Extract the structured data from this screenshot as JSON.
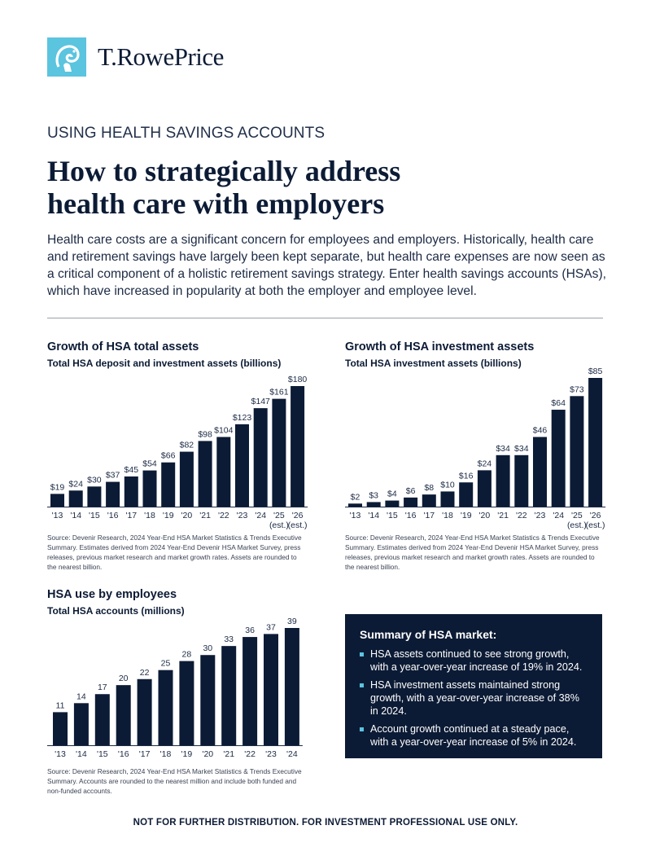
{
  "brand": {
    "name": "T.RowePrice",
    "accent_color": "#5bc4df",
    "primary_color": "#0c1b35",
    "icon": "ram-logo-icon"
  },
  "kicker": "USING HEALTH SAVINGS ACCOUNTS",
  "headline": {
    "line1": "How to strategically address",
    "line2": "health care with employers"
  },
  "intro": "Health care costs are a significant concern for employees and employers. Historically, health care and retirement savings have largely been kept separate, but health care expenses are now seen as a critical component of a holistic retirement savings strategy. Enter health savings accounts (HSAs), which have increased in popularity at both the employer and employee level.",
  "charts": {
    "assets": {
      "title": "Growth of HSA total assets",
      "subtitle": "Total HSA deposit and investment assets (billions)",
      "source": "Source: Devenir Research, 2024 Year-End HSA Market Statistics & Trends Executive Summary. Estimates derived from 2024 Year-End Devenir HSA Market Survey, press releases, previous market research and market growth rates. Assets are rounded to the nearest billion."
    },
    "investment": {
      "title": "Growth of HSA investment assets",
      "subtitle": "Total HSA investment assets (billions)",
      "source": "Source: Devenir Research, 2024 Year-End HSA Market Statistics & Trends Executive Summary. Estimates derived from 2024 Year-End Devenir HSA Market Survey, press releases, previous market research and market growth rates. Assets are rounded to the nearest billion."
    },
    "accounts": {
      "title": "HSA use by employees",
      "subtitle": "Total HSA accounts (millions)",
      "source": "Source: Devenir Research, 2024 Year-End HSA Market Statistics & Trends Executive Summary. Accounts are rounded to the nearest million and include both funded and non-funded accounts."
    }
  },
  "chart_data": [
    {
      "type": "bar",
      "title": "Growth of HSA total assets",
      "subtitle": "Total HSA deposit and investment assets (billions)",
      "categories": [
        "'13",
        "'14",
        "'15",
        "'16",
        "'17",
        "'18",
        "'19",
        "'20",
        "'21",
        "'22",
        "'23",
        "'24",
        "'25",
        "'26"
      ],
      "est_labels": [
        "",
        "",
        "",
        "",
        "",
        "",
        "",
        "",
        "",
        "",
        "",
        "",
        "(est.)",
        "(est.)"
      ],
      "values": [
        19,
        24,
        30,
        37,
        45,
        54,
        66,
        82,
        98,
        104,
        123,
        147,
        161,
        180
      ],
      "value_labels": [
        "$19",
        "$24",
        "$30",
        "$37",
        "$45",
        "$54",
        "$66",
        "$82",
        "$98",
        "$104",
        "$123",
        "$147",
        "$161",
        "$180"
      ],
      "ylim": [
        0,
        180
      ]
    },
    {
      "type": "bar",
      "title": "Growth of HSA investment assets",
      "subtitle": "Total HSA investment assets (billions)",
      "categories": [
        "'13",
        "'14",
        "'15",
        "'16",
        "'17",
        "'18",
        "'19",
        "'20",
        "'21",
        "'22",
        "'23",
        "'24",
        "'25",
        "'26"
      ],
      "est_labels": [
        "",
        "",
        "",
        "",
        "",
        "",
        "",
        "",
        "",
        "",
        "",
        "",
        "(est.)",
        "(est.)"
      ],
      "values": [
        2,
        3,
        4,
        6,
        8,
        10,
        16,
        24,
        34,
        34,
        46,
        64,
        73,
        85
      ],
      "value_labels": [
        "$2",
        "$3",
        "$4",
        "$6",
        "$8",
        "$10",
        "$16",
        "$24",
        "$34",
        "$34",
        "$46",
        "$64",
        "$73",
        "$85"
      ],
      "ylim": [
        0,
        85
      ]
    },
    {
      "type": "bar",
      "title": "HSA use by employees",
      "subtitle": "Total HSA accounts (millions)",
      "categories": [
        "'13",
        "'14",
        "'15",
        "'16",
        "'17",
        "'18",
        "'19",
        "'20",
        "'21",
        "'22",
        "'23",
        "'24"
      ],
      "est_labels": [
        "",
        "",
        "",
        "",
        "",
        "",
        "",
        "",
        "",
        "",
        "",
        ""
      ],
      "values": [
        11,
        14,
        17,
        20,
        22,
        25,
        28,
        30,
        33,
        36,
        37,
        39
      ],
      "value_labels": [
        "11",
        "14",
        "17",
        "20",
        "22",
        "25",
        "28",
        "30",
        "33",
        "36",
        "37",
        "39"
      ],
      "ylim": [
        0,
        39
      ]
    }
  ],
  "summary": {
    "title": "Summary of HSA market:",
    "items": [
      "HSA assets continued to see strong growth, with a year-over-year increase of 19% in 2024.",
      "HSA investment assets maintained strong growth, with a year-over-year increase of 38% in 2024.",
      "Account growth continued at a steady pace, with a year-over-year increase of 5% in 2024."
    ]
  },
  "footer": "NOT FOR FURTHER DISTRIBUTION. FOR INVESTMENT PROFESSIONAL USE ONLY."
}
